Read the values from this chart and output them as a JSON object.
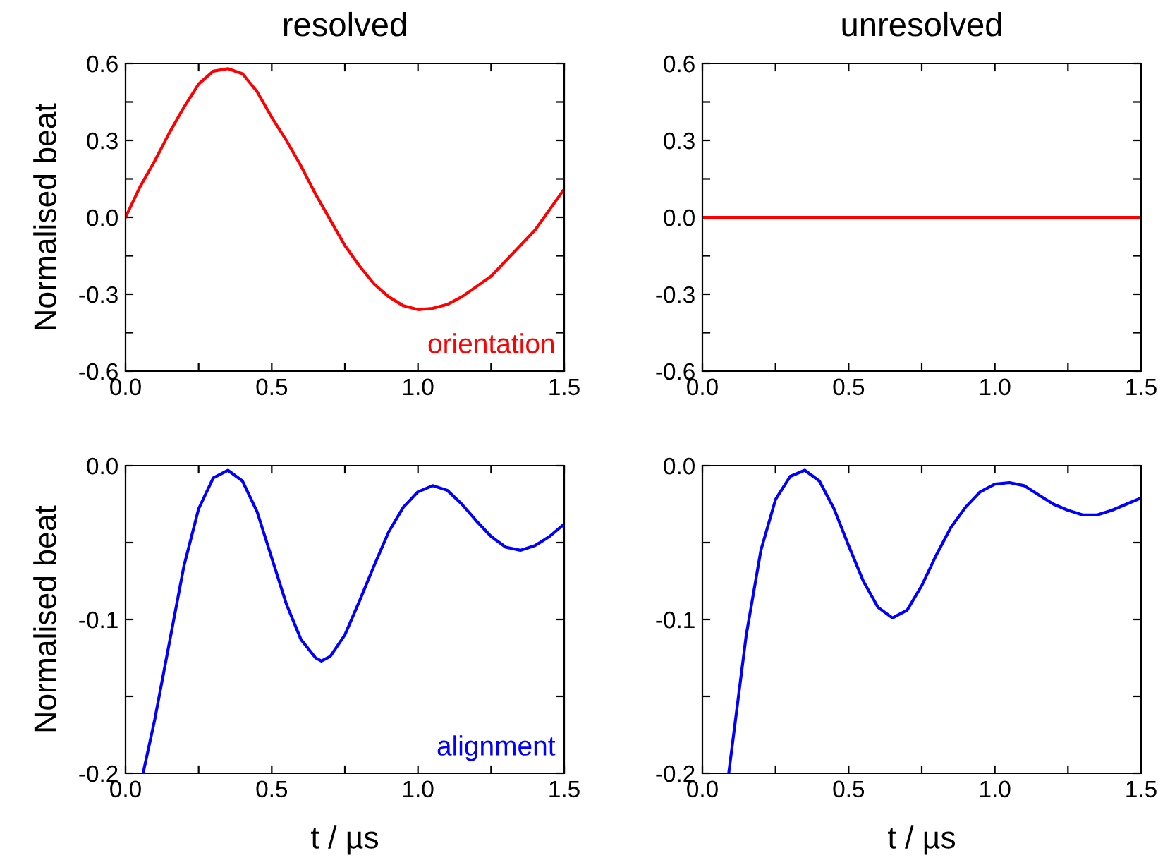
{
  "chart_data": [
    {
      "type": "line",
      "title": "resolved",
      "ylabel": "Normalised beat",
      "xlim": [
        0,
        1.5
      ],
      "ylim": [
        -0.6,
        0.6
      ],
      "xticks": [
        {
          "value": 0,
          "label": "0.0"
        },
        {
          "value": 0.25,
          "label": null
        },
        {
          "value": 0.5,
          "label": "0.5"
        },
        {
          "value": 0.75,
          "label": null
        },
        {
          "value": 1,
          "label": "1.0"
        },
        {
          "value": 1.25,
          "label": null
        },
        {
          "value": 1.5,
          "label": "1.5"
        }
      ],
      "yticks": [
        {
          "value": -0.6,
          "label": "-0.6"
        },
        {
          "value": -0.45,
          "label": null
        },
        {
          "value": -0.3,
          "label": "-0.3"
        },
        {
          "value": -0.15,
          "label": null
        },
        {
          "value": 0,
          "label": "0.0"
        },
        {
          "value": 0.15,
          "label": null
        },
        {
          "value": 0.3,
          "label": "0.3"
        },
        {
          "value": 0.45,
          "label": null
        },
        {
          "value": 0.6,
          "label": "0.6"
        }
      ],
      "series": [
        {
          "name": "orientation",
          "color": "#ff0000",
          "x": [
            0,
            0.05,
            0.1,
            0.15,
            0.2,
            0.25,
            0.3,
            0.35,
            0.4,
            0.45,
            0.5,
            0.55,
            0.6,
            0.65,
            0.7,
            0.75,
            0.8,
            0.85,
            0.9,
            0.95,
            1.0,
            1.05,
            1.1,
            1.15,
            1.2,
            1.25,
            1.3,
            1.35,
            1.4,
            1.45,
            1.5
          ],
          "values": [
            0,
            0.12,
            0.22,
            0.33,
            0.43,
            0.52,
            0.57,
            0.58,
            0.56,
            0.49,
            0.39,
            0.3,
            0.2,
            0.09,
            -0.01,
            -0.11,
            -0.19,
            -0.26,
            -0.31,
            -0.345,
            -0.36,
            -0.355,
            -0.34,
            -0.31,
            -0.27,
            -0.23,
            -0.17,
            -0.11,
            -0.05,
            0.03,
            0.11
          ]
        }
      ]
    },
    {
      "type": "line",
      "title": "unresolved",
      "xlim": [
        0,
        1.5
      ],
      "ylim": [
        -0.6,
        0.6
      ],
      "xticks": [
        {
          "value": 0,
          "label": "0.0"
        },
        {
          "value": 0.25,
          "label": null
        },
        {
          "value": 0.5,
          "label": "0.5"
        },
        {
          "value": 0.75,
          "label": null
        },
        {
          "value": 1,
          "label": "1.0"
        },
        {
          "value": 1.25,
          "label": null
        },
        {
          "value": 1.5,
          "label": "1.5"
        }
      ],
      "yticks": [
        {
          "value": -0.6,
          "label": "-0.6"
        },
        {
          "value": -0.45,
          "label": null
        },
        {
          "value": -0.3,
          "label": "-0.3"
        },
        {
          "value": -0.15,
          "label": null
        },
        {
          "value": 0,
          "label": "0.0"
        },
        {
          "value": 0.15,
          "label": null
        },
        {
          "value": 0.3,
          "label": "0.3"
        },
        {
          "value": 0.45,
          "label": null
        },
        {
          "value": 0.6,
          "label": "0.6"
        }
      ],
      "series": [
        {
          "color": "#ff0000",
          "x": [
            0,
            0.25,
            0.5,
            0.75,
            1.0,
            1.25,
            1.5
          ],
          "values": [
            0,
            0,
            0,
            0,
            0,
            0,
            0
          ]
        }
      ]
    },
    {
      "type": "line",
      "xlabel": "t / µs",
      "ylabel": "Normalised beat",
      "xlim": [
        0,
        1.5
      ],
      "ylim": [
        -0.2,
        0
      ],
      "xticks": [
        {
          "value": 0,
          "label": "0.0"
        },
        {
          "value": 0.25,
          "label": null
        },
        {
          "value": 0.5,
          "label": "0.5"
        },
        {
          "value": 0.75,
          "label": null
        },
        {
          "value": 1,
          "label": "1.0"
        },
        {
          "value": 1.25,
          "label": null
        },
        {
          "value": 1.5,
          "label": "1.5"
        }
      ],
      "yticks": [
        {
          "value": -0.2,
          "label": "-0.2"
        },
        {
          "value": -0.15,
          "label": null
        },
        {
          "value": -0.1,
          "label": "-0.1"
        },
        {
          "value": -0.05,
          "label": null
        },
        {
          "value": 0,
          "label": "0.0"
        }
      ],
      "series": [
        {
          "name": "alignment",
          "color": "#0000ff",
          "x": [
            0.06,
            0.1,
            0.15,
            0.2,
            0.25,
            0.3,
            0.35,
            0.4,
            0.45,
            0.5,
            0.55,
            0.6,
            0.65,
            0.67,
            0.7,
            0.75,
            0.8,
            0.85,
            0.9,
            0.95,
            1.0,
            1.05,
            1.1,
            1.15,
            1.2,
            1.25,
            1.3,
            1.35,
            1.4,
            1.45,
            1.5
          ],
          "values": [
            -0.2,
            -0.165,
            -0.115,
            -0.065,
            -0.028,
            -0.008,
            -0.003,
            -0.01,
            -0.03,
            -0.06,
            -0.09,
            -0.113,
            -0.125,
            -0.127,
            -0.124,
            -0.11,
            -0.088,
            -0.065,
            -0.043,
            -0.027,
            -0.017,
            -0.013,
            -0.016,
            -0.025,
            -0.036,
            -0.046,
            -0.053,
            -0.055,
            -0.052,
            -0.046,
            -0.038
          ]
        }
      ]
    },
    {
      "type": "line",
      "xlabel": "t / µs",
      "xlim": [
        0,
        1.5
      ],
      "ylim": [
        -0.2,
        0
      ],
      "xticks": [
        {
          "value": 0,
          "label": "0.0"
        },
        {
          "value": 0.25,
          "label": null
        },
        {
          "value": 0.5,
          "label": "0.5"
        },
        {
          "value": 0.75,
          "label": null
        },
        {
          "value": 1,
          "label": "1.0"
        },
        {
          "value": 1.25,
          "label": null
        },
        {
          "value": 1.5,
          "label": "1.5"
        }
      ],
      "yticks": [
        {
          "value": -0.2,
          "label": "-0.2"
        },
        {
          "value": -0.15,
          "label": null
        },
        {
          "value": -0.1,
          "label": "-0.1"
        },
        {
          "value": -0.05,
          "label": null
        },
        {
          "value": 0,
          "label": "0.0"
        }
      ],
      "series": [
        {
          "color": "#0000ff",
          "x": [
            0.09,
            0.15,
            0.2,
            0.25,
            0.3,
            0.35,
            0.4,
            0.45,
            0.5,
            0.55,
            0.6,
            0.65,
            0.7,
            0.75,
            0.8,
            0.85,
            0.9,
            0.95,
            1.0,
            1.05,
            1.1,
            1.15,
            1.2,
            1.25,
            1.3,
            1.35,
            1.4,
            1.45,
            1.5
          ],
          "values": [
            -0.2,
            -0.11,
            -0.055,
            -0.022,
            -0.007,
            -0.003,
            -0.01,
            -0.028,
            -0.052,
            -0.075,
            -0.092,
            -0.099,
            -0.094,
            -0.078,
            -0.058,
            -0.04,
            -0.027,
            -0.017,
            -0.012,
            -0.011,
            -0.013,
            -0.019,
            -0.025,
            -0.029,
            -0.032,
            -0.032,
            -0.029,
            -0.025,
            -0.021
          ]
        }
      ]
    }
  ]
}
